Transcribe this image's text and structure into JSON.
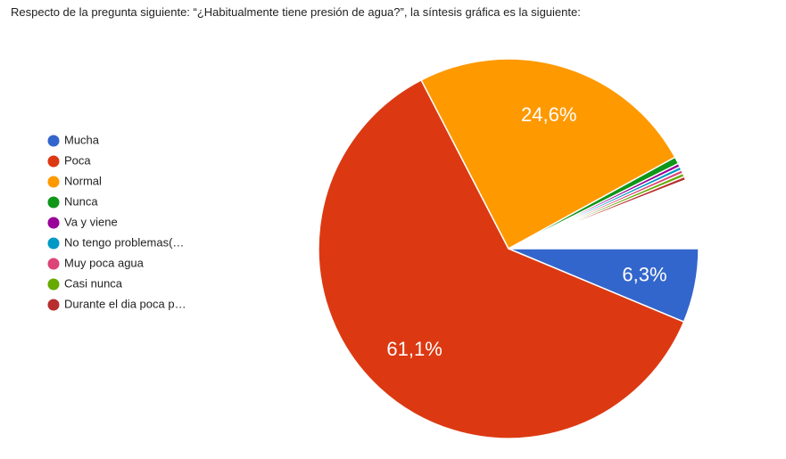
{
  "intro": "Respecto de la pregunta siguiente: “¿Habitualmente tiene presión de agua?”, la síntesis gráfica es la siguiente:",
  "chart_data": {
    "type": "pie",
    "categories": [
      "Mucha",
      "Poca",
      "Normal",
      "Nunca",
      "Va y viene",
      "No tengo problemas(…",
      "Muy poca agua",
      "Casi nunca",
      "Durante el dia poca p…"
    ],
    "values": [
      6.3,
      61.1,
      24.6,
      0.6,
      0.3,
      0.3,
      0.3,
      0.3,
      0.3
    ],
    "value_labels": [
      "6,3%",
      "61,1%",
      "24,6%",
      null,
      null,
      null,
      null,
      null,
      null
    ],
    "colors": [
      "#3366cc",
      "#dc3912",
      "#ff9900",
      "#109618",
      "#990099",
      "#0099c6",
      "#dd4477",
      "#66aa00",
      "#b82e2e"
    ],
    "legend": "left"
  }
}
